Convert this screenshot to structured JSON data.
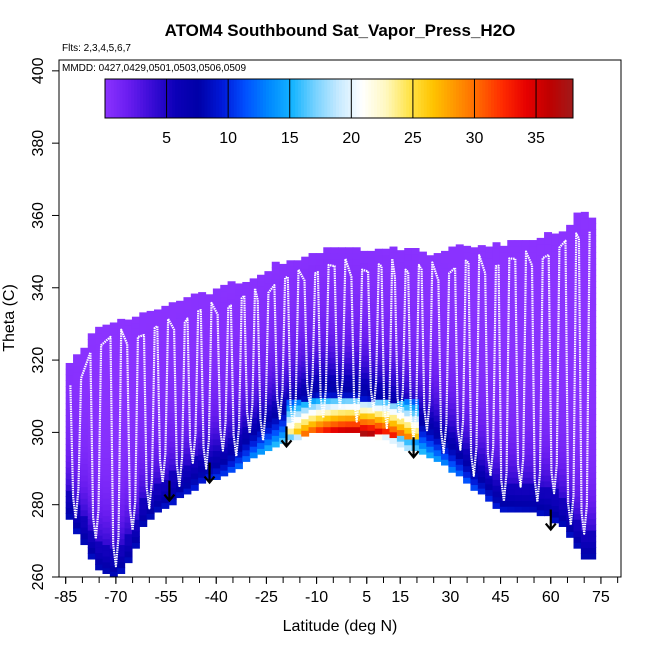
{
  "chart_data": {
    "type": "heatmap",
    "title": "ATOM4 Southbound Sat_Vapor_Press_H2O",
    "annotations": [
      "Flts: 2,3,4,5,6,7",
      "MMDD: 0427,0429,0501,0503,0506,0509"
    ],
    "xlabel": "Latitude (deg N)",
    "ylabel": "Theta (C)",
    "xlim": [
      -87,
      81
    ],
    "ylim": [
      260,
      403
    ],
    "x_ticks": [
      -85,
      -70,
      -55,
      -40,
      -25,
      -10,
      5,
      15,
      30,
      45,
      60,
      75
    ],
    "x_tick_labels": [
      "-85",
      "-70",
      "-55",
      "-40",
      "-25",
      "-10",
      "5",
      "15",
      "30",
      "45",
      "60",
      "75"
    ],
    "y_ticks": [
      260,
      280,
      300,
      320,
      340,
      360,
      380,
      400
    ],
    "y_tick_labels": [
      "260",
      "280",
      "300",
      "320",
      "340",
      "360",
      "380",
      "400"
    ],
    "colorbar": {
      "range": [
        0,
        38
      ],
      "ticks": [
        5,
        10,
        15,
        20,
        25,
        30,
        35
      ],
      "tick_labels": [
        "5",
        "10",
        "15",
        "20",
        "25",
        "30",
        "35"
      ],
      "palette": [
        "#8b33ff",
        "#6a1df0",
        "#3a0cd6",
        "#0c00b8",
        "#0000a8",
        "#0018d8",
        "#0050ff",
        "#0088ff",
        "#14b4ff",
        "#78d2ff",
        "#c8eaff",
        "#ffffff",
        "#fff8c0",
        "#ffe44a",
        "#ffc400",
        "#ff9400",
        "#ff6400",
        "#ff2a00",
        "#e60000",
        "#be0000",
        "#a11a1a"
      ]
    },
    "field": {
      "bottom_theta": [
        [
          -85,
          278
        ],
        [
          -80,
          270
        ],
        [
          -75,
          262
        ],
        [
          -70,
          260
        ],
        [
          -65,
          266
        ],
        [
          -62,
          274
        ],
        [
          -58,
          278
        ],
        [
          -53,
          281
        ],
        [
          -48,
          284
        ],
        [
          -43,
          287
        ],
        [
          -38,
          288
        ],
        [
          -33,
          291
        ],
        [
          -28,
          294
        ],
        [
          -23,
          296
        ],
        [
          -18,
          298
        ],
        [
          -13,
          300
        ],
        [
          -8,
          301
        ],
        [
          -3,
          300
        ],
        [
          2,
          300
        ],
        [
          7,
          299
        ],
        [
          12,
          298
        ],
        [
          17,
          296
        ],
        [
          22,
          294
        ],
        [
          27,
          292
        ],
        [
          32,
          289
        ],
        [
          37,
          285
        ],
        [
          42,
          281
        ],
        [
          45,
          278
        ],
        [
          50,
          278
        ],
        [
          55,
          278
        ],
        [
          60,
          277
        ],
        [
          65,
          273
        ],
        [
          70,
          265
        ],
        [
          72,
          265
        ]
      ],
      "top_theta": [
        [
          -85,
          317
        ],
        [
          -81,
          321
        ],
        [
          -77,
          327
        ],
        [
          -72,
          330
        ],
        [
          -67,
          331
        ],
        [
          -62,
          332
        ],
        [
          -57,
          333
        ],
        [
          -52,
          335
        ],
        [
          -47,
          337
        ],
        [
          -42,
          338
        ],
        [
          -37,
          340
        ],
        [
          -32,
          341
        ],
        [
          -27,
          343
        ],
        [
          -22,
          346
        ],
        [
          -17,
          347
        ],
        [
          -12,
          349
        ],
        [
          -7,
          350
        ],
        [
          -2,
          350
        ],
        [
          3,
          350
        ],
        [
          8,
          350
        ],
        [
          13,
          350
        ],
        [
          18,
          350
        ],
        [
          23,
          349
        ],
        [
          28,
          349
        ],
        [
          33,
          351
        ],
        [
          38,
          351
        ],
        [
          43,
          351
        ],
        [
          48,
          352
        ],
        [
          53,
          352
        ],
        [
          58,
          354
        ],
        [
          63,
          355
        ],
        [
          66,
          357
        ],
        [
          69,
          362
        ],
        [
          72,
          358
        ]
      ],
      "tropical_max": {
        "lat_range": [
          -18,
          20
        ],
        "theta_range": [
          300,
          308
        ],
        "peak_value": 37
      },
      "descriptor": "near-zero values (violet) above ~320 C, rising through blue/cyan toward the surface, warm (yellow-red) core in the tropics at 300-307 C"
    },
    "flight_tracks": "white profile traces, vertical zig-zags between ~270 and ~350 C across the latitude range",
    "arrows": [
      {
        "lat": -54,
        "theta": 285
      },
      {
        "lat": -42,
        "theta": 290
      },
      {
        "lat": -19,
        "theta": 300
      },
      {
        "lat": 19,
        "theta": 297
      },
      {
        "lat": 60,
        "theta": 277
      }
    ],
    "grid": false,
    "legend": "colorbar at top inside plot"
  }
}
